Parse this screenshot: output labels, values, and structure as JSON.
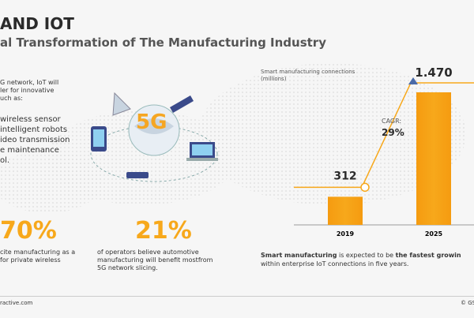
{
  "header": {
    "title": "AND IOT",
    "subtitle": "al Transformation of The Manufacturing Industry"
  },
  "intro": {
    "lines": [
      "G network, IoT will",
      "ler for innovative",
      "uch as:"
    ],
    "items": [
      "wireless sensor",
      "intelligent robots",
      "ideo transmission",
      "e maintenance",
      "ol."
    ]
  },
  "stats": [
    {
      "value": "70%",
      "lines": [
        "cite manufacturing as a",
        "for private wireless"
      ]
    },
    {
      "value": "21%",
      "lines": [
        "of operators believe automotive",
        "manufacturing will benefit mostfrom",
        "5G network slicing."
      ]
    }
  ],
  "chart_data": {
    "type": "bar",
    "y_label": [
      "Smart manufacturing connections",
      "(millions)"
    ],
    "categories": [
      "2019",
      "2025"
    ],
    "values": [
      312,
      1470
    ],
    "value_labels": [
      "312",
      "1.470"
    ],
    "color": "#f7a81b",
    "annotation": {
      "label": "CAGR:",
      "value": "29%"
    }
  },
  "caption": {
    "line1": [
      {
        "text": "Smart manufacturing",
        "bold": true
      },
      {
        "text": " is expected to be ",
        "bold": false
      },
      {
        "text": "the fastest growin",
        "bold": true
      }
    ],
    "line2": "within enterprise IoT connections in five years."
  },
  "footer": {
    "left": "ractive.com",
    "right": "© GS"
  }
}
